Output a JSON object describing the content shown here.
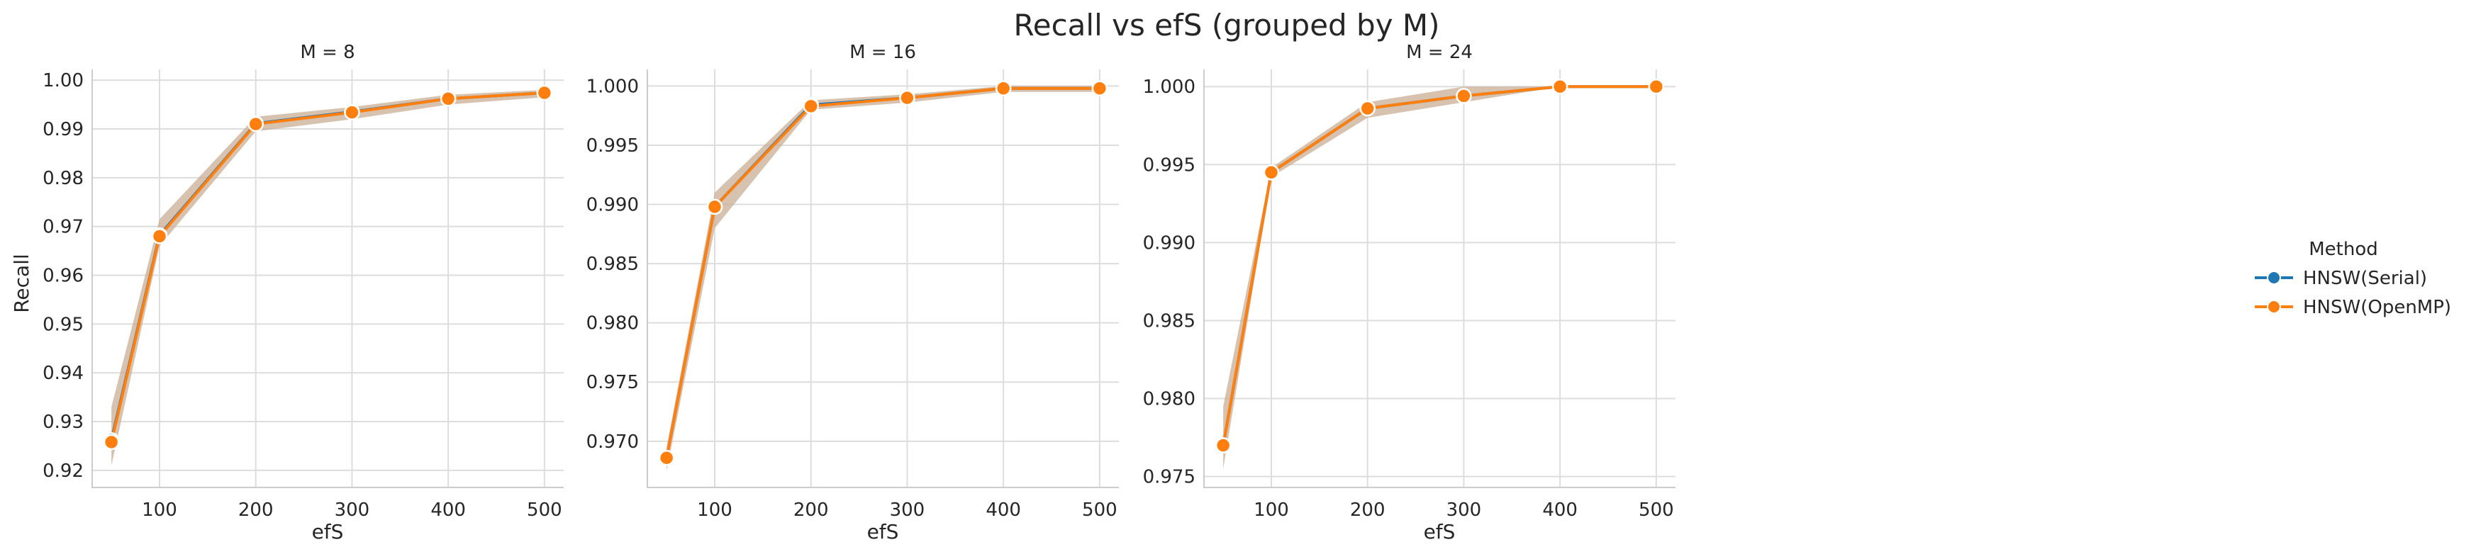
{
  "title": "Recall vs efS (grouped by M)",
  "chart_data": [
    {
      "type": "line",
      "panel_title": "M = 8",
      "xlabel": "efS",
      "ylabel": "Recall",
      "xlim": [
        30,
        520
      ],
      "ylim": [
        0.9165,
        1.0022
      ],
      "xticks": [
        100,
        200,
        300,
        400,
        500
      ],
      "yticks": [
        0.92,
        0.93,
        0.94,
        0.95,
        0.96,
        0.97,
        0.98,
        0.99,
        1.0
      ],
      "ytick_labels": [
        "0.92",
        "0.93",
        "0.94",
        "0.95",
        "0.96",
        "0.97",
        "0.98",
        "0.99",
        "1.00"
      ],
      "x": [
        50,
        100,
        200,
        300,
        400,
        500
      ],
      "band_low": [
        0.921,
        0.966,
        0.9895,
        0.992,
        0.995,
        0.9965
      ],
      "band_high": [
        0.933,
        0.9715,
        0.9925,
        0.9945,
        0.997,
        0.998
      ],
      "series": [
        {
          "name": "HNSW(Serial)",
          "values": [
            0.9262,
            0.9682,
            0.9911,
            0.9935,
            0.9962,
            0.9974
          ]
        },
        {
          "name": "HNSW(OpenMP)",
          "values": [
            0.9258,
            0.968,
            0.991,
            0.9934,
            0.9962,
            0.9974
          ]
        }
      ],
      "grid": true
    },
    {
      "type": "line",
      "panel_title": "M = 16",
      "xlabel": "efS",
      "ylabel": "",
      "xlim": [
        30,
        520
      ],
      "ylim": [
        0.9661,
        1.0014
      ],
      "xticks": [
        100,
        200,
        300,
        400,
        500
      ],
      "yticks": [
        0.97,
        0.975,
        0.98,
        0.985,
        0.99,
        0.995,
        1.0
      ],
      "ytick_labels": [
        "0.970",
        "0.975",
        "0.980",
        "0.985",
        "0.990",
        "0.995",
        "1.000"
      ],
      "x": [
        50,
        100,
        200,
        300,
        400,
        500
      ],
      "band_low": [
        0.9675,
        0.988,
        0.998,
        0.9986,
        0.9995,
        0.9995
      ],
      "band_high": [
        0.9695,
        0.991,
        0.9988,
        0.9993,
        1.0,
        1.0
      ],
      "series": [
        {
          "name": "HNSW(Serial)",
          "values": [
            0.9686,
            0.9898,
            0.9984,
            0.999,
            0.9998,
            0.9998
          ]
        },
        {
          "name": "HNSW(OpenMP)",
          "values": [
            0.9686,
            0.9898,
            0.9983,
            0.999,
            0.9998,
            0.9998
          ]
        }
      ],
      "grid": true
    },
    {
      "type": "line",
      "panel_title": "M = 24",
      "xlabel": "efS",
      "ylabel": "",
      "xlim": [
        30,
        520
      ],
      "ylim": [
        0.9743,
        1.0011
      ],
      "xticks": [
        100,
        200,
        300,
        400,
        500
      ],
      "yticks": [
        0.975,
        0.98,
        0.985,
        0.99,
        0.995,
        1.0
      ],
      "ytick_labels": [
        "0.975",
        "0.980",
        "0.985",
        "0.990",
        "0.995",
        "1.000"
      ],
      "x": [
        50,
        100,
        200,
        300,
        400,
        500
      ],
      "band_low": [
        0.9755,
        0.9942,
        0.998,
        0.999,
        1.0,
        1.0
      ],
      "band_high": [
        0.9795,
        0.9948,
        0.999,
        1.0,
        1.0,
        1.0
      ],
      "series": [
        {
          "name": "HNSW(Serial)",
          "values": [
            0.977,
            0.9945,
            0.9986,
            0.9994,
            1.0,
            1.0
          ]
        },
        {
          "name": "HNSW(OpenMP)",
          "values": [
            0.977,
            0.9945,
            0.9986,
            0.9994,
            1.0,
            1.0
          ]
        }
      ],
      "grid": true
    }
  ],
  "legend": {
    "title": "Method",
    "placement": "right",
    "items": [
      {
        "label": "HNSW(Serial)",
        "color": "#1f77b4"
      },
      {
        "label": "HNSW(OpenMP)",
        "color": "#ff7f0e"
      }
    ]
  },
  "colors": {
    "serial": "#1f77b4",
    "openmp": "#ff7f0e",
    "band": "#c9ad96",
    "marker_edge": "#ffffff"
  }
}
